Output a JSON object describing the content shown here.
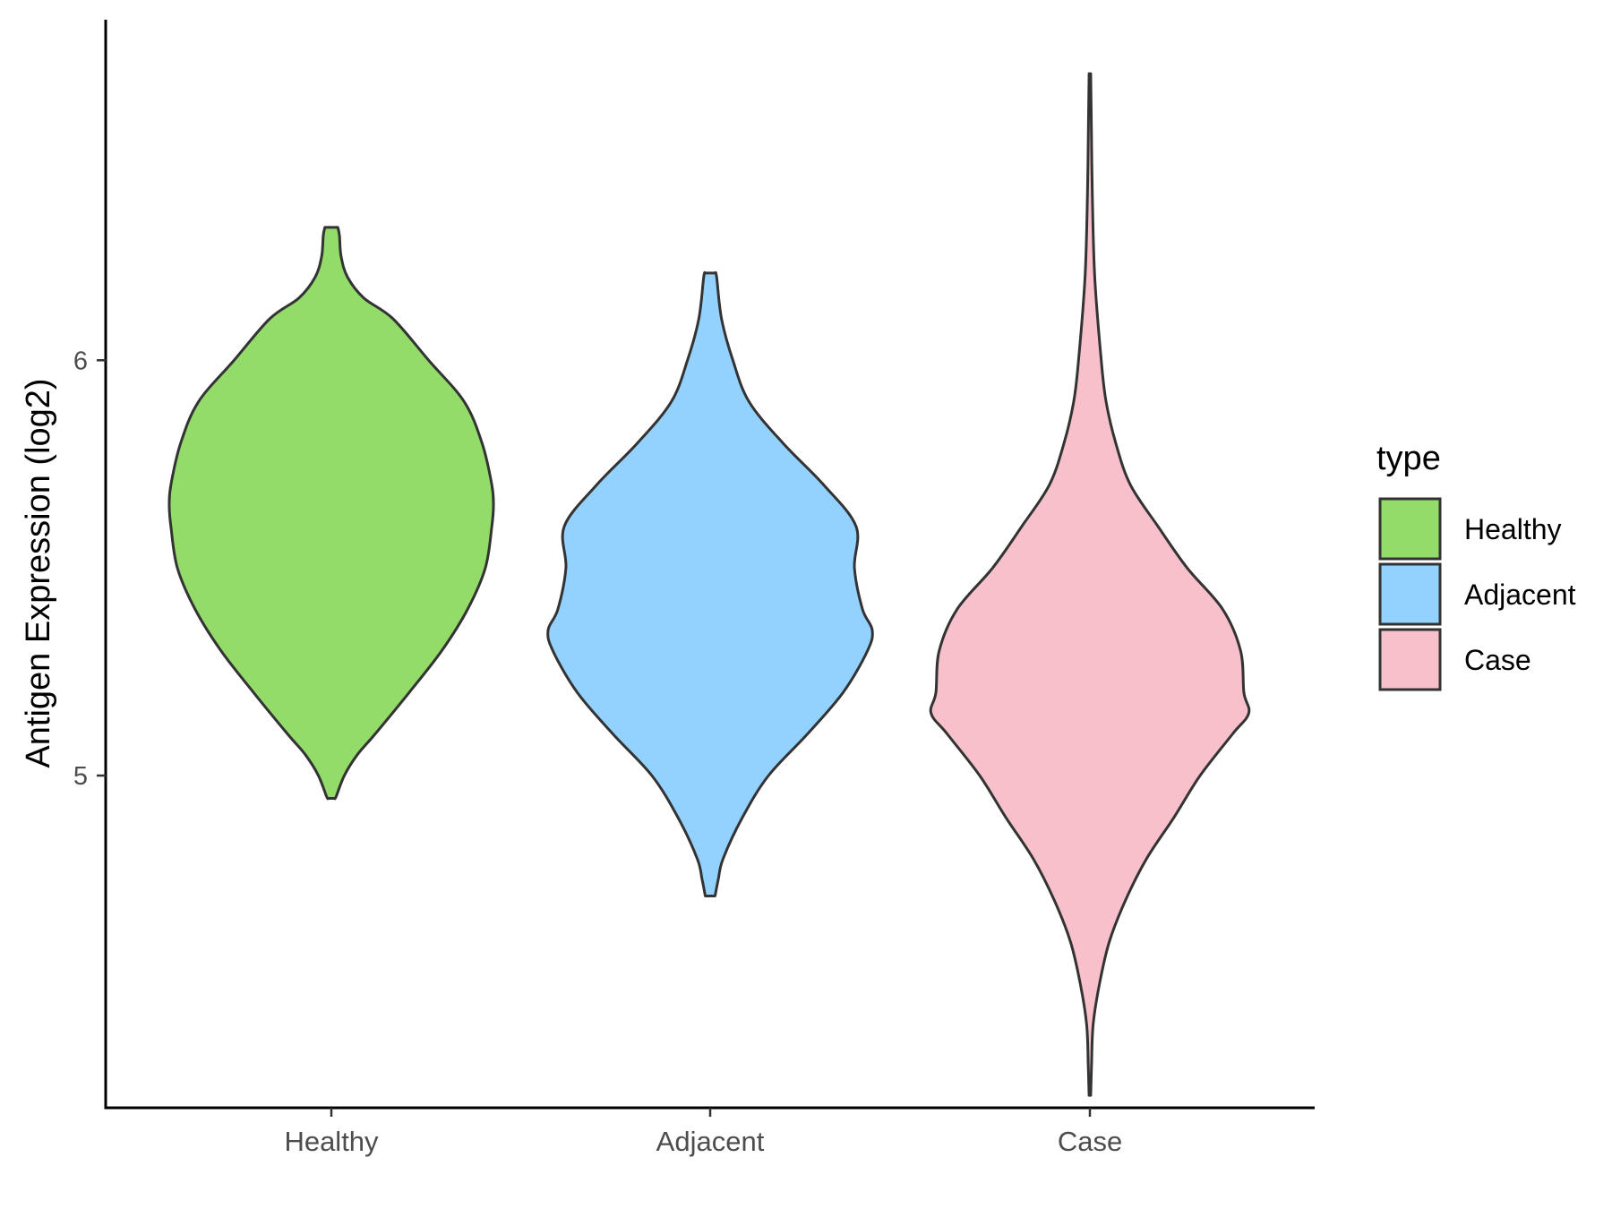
{
  "chart_data": {
    "type": "violin",
    "ylabel": "Antigen Expression (log2)",
    "xlabel": "",
    "categories": [
      "Healthy",
      "Adjacent",
      "Case"
    ],
    "yticks": [
      5,
      6
    ],
    "ylim": [
      4.2,
      6.82
    ],
    "grid": false,
    "legend": {
      "title": "type",
      "position": "right",
      "entries": [
        "Healthy",
        "Adjacent",
        "Case"
      ]
    },
    "colors": {
      "Healthy": "#93dc6a",
      "Adjacent": "#93d2fe",
      "Case": "#f7c0cb",
      "outline": "#333333"
    },
    "series": [
      {
        "category": "Healthy",
        "profile": [
          [
            4.945,
            0.02
          ],
          [
            4.95,
            0.03
          ],
          [
            5.0,
            0.08
          ],
          [
            5.05,
            0.16
          ],
          [
            5.1,
            0.27
          ],
          [
            5.2,
            0.48
          ],
          [
            5.3,
            0.68
          ],
          [
            5.4,
            0.84
          ],
          [
            5.5,
            0.95
          ],
          [
            5.6,
            0.99
          ],
          [
            5.65,
            1.0
          ],
          [
            5.7,
            0.99
          ],
          [
            5.8,
            0.93
          ],
          [
            5.9,
            0.82
          ],
          [
            6.0,
            0.6
          ],
          [
            6.1,
            0.38
          ],
          [
            6.15,
            0.2
          ],
          [
            6.2,
            0.1
          ],
          [
            6.25,
            0.06
          ],
          [
            6.3,
            0.05
          ],
          [
            6.32,
            0.04
          ]
        ]
      },
      {
        "category": "Adjacent",
        "profile": [
          [
            4.71,
            0.03
          ],
          [
            4.75,
            0.05
          ],
          [
            4.8,
            0.08
          ],
          [
            4.9,
            0.2
          ],
          [
            5.0,
            0.36
          ],
          [
            5.1,
            0.6
          ],
          [
            5.2,
            0.82
          ],
          [
            5.3,
            0.97
          ],
          [
            5.35,
            1.0
          ],
          [
            5.4,
            0.94
          ],
          [
            5.5,
            0.89
          ],
          [
            5.6,
            0.9
          ],
          [
            5.7,
            0.7
          ],
          [
            5.8,
            0.45
          ],
          [
            5.9,
            0.24
          ],
          [
            6.0,
            0.14
          ],
          [
            6.1,
            0.07
          ],
          [
            6.2,
            0.04
          ],
          [
            6.21,
            0.03
          ]
        ]
      },
      {
        "category": "Case",
        "profile": [
          [
            4.23,
            0.005
          ],
          [
            4.3,
            0.01
          ],
          [
            4.4,
            0.02
          ],
          [
            4.5,
            0.06
          ],
          [
            4.6,
            0.12
          ],
          [
            4.7,
            0.22
          ],
          [
            4.8,
            0.35
          ],
          [
            4.9,
            0.52
          ],
          [
            5.0,
            0.68
          ],
          [
            5.1,
            0.88
          ],
          [
            5.15,
            0.98
          ],
          [
            5.2,
            0.95
          ],
          [
            5.3,
            0.93
          ],
          [
            5.4,
            0.82
          ],
          [
            5.5,
            0.6
          ],
          [
            5.6,
            0.42
          ],
          [
            5.7,
            0.25
          ],
          [
            5.8,
            0.16
          ],
          [
            5.9,
            0.1
          ],
          [
            6.0,
            0.07
          ],
          [
            6.2,
            0.03
          ],
          [
            6.4,
            0.015
          ],
          [
            6.6,
            0.008
          ],
          [
            6.69,
            0.005
          ]
        ]
      }
    ]
  }
}
